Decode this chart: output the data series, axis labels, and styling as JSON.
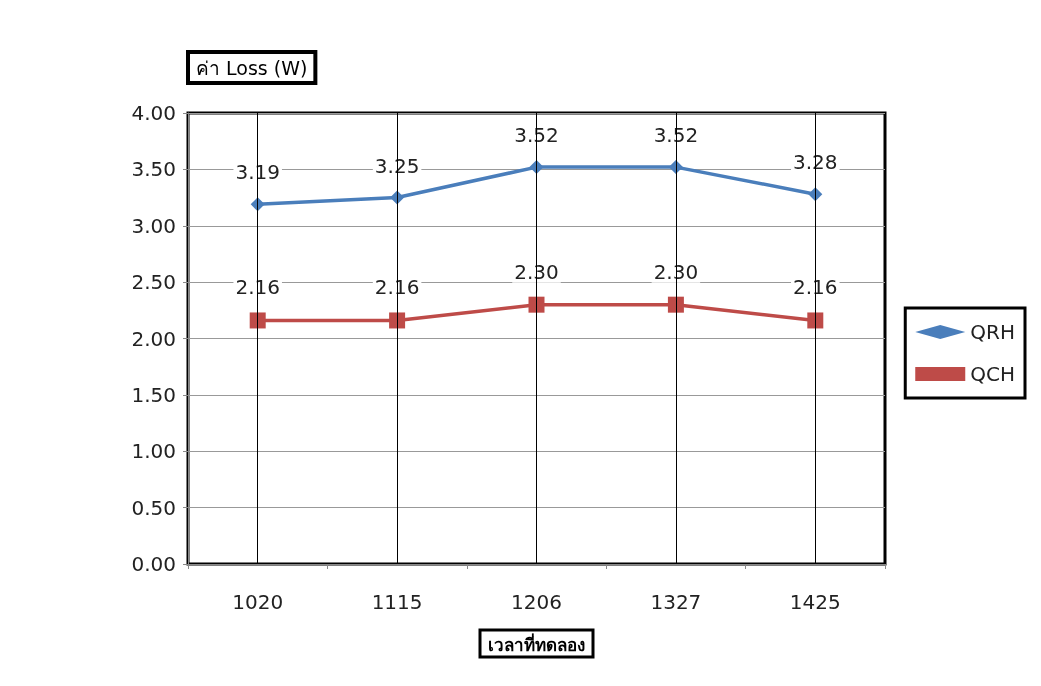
{
  "chart_data": {
    "type": "line",
    "ylabel": "ค่า Loss (W)",
    "xlabel": "เวลาที่ทดลอง",
    "categories": [
      "1020",
      "1115",
      "1206",
      "1327",
      "1425"
    ],
    "series": [
      {
        "name": "QRH",
        "color": "#4a7ebb",
        "values": [
          3.19,
          3.25,
          3.52,
          3.52,
          3.28
        ],
        "value_labels": [
          "3.19",
          "3.25",
          "3.52",
          "3.52",
          "3.28"
        ],
        "marker": "diamond"
      },
      {
        "name": "QCH",
        "color": "#be4b48",
        "values": [
          2.16,
          2.16,
          2.3,
          2.3,
          2.16
        ],
        "value_labels": [
          "2.16",
          "2.16",
          "2.30",
          "2.30",
          "2.16"
        ],
        "marker": "square"
      }
    ],
    "ylim": [
      0,
      4
    ],
    "yticks": [
      {
        "value": 0,
        "label": "0.00"
      },
      {
        "value": 0.5,
        "label": "0.50"
      },
      {
        "value": 1,
        "label": "1.00"
      },
      {
        "value": 1.5,
        "label": "1.50"
      },
      {
        "value": 2,
        "label": "2.00"
      },
      {
        "value": 2.5,
        "label": "2.50"
      },
      {
        "value": 3,
        "label": "3.00"
      },
      {
        "value": 3.5,
        "label": "3.50"
      },
      {
        "value": 4,
        "label": "4.00"
      }
    ],
    "grid": true,
    "legend": "right"
  }
}
